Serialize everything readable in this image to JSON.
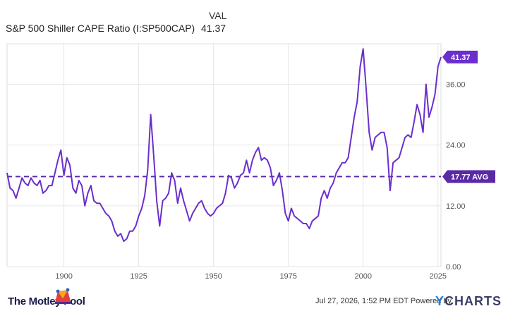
{
  "legend": {
    "header": "VAL",
    "series_name": "S&P 500 Shiller CAPE Ratio (I:SP500CAP)",
    "series_value": "41.37"
  },
  "colors": {
    "series": "#6a2fcc",
    "avg_line": "#5a2aa6",
    "grid": "#e6e6e6",
    "axis_text": "#555555"
  },
  "chart_data": {
    "type": "line",
    "title": "",
    "xlabel": "",
    "ylabel": "",
    "xlim": [
      1881,
      2026
    ],
    "ylim": [
      0,
      44
    ],
    "x_ticks": [
      1900,
      1925,
      1950,
      1975,
      2000,
      2025
    ],
    "x_tick_labels": [
      "1900",
      "1925",
      "1950",
      "1975",
      "2000",
      "2025"
    ],
    "y_ticks": [
      0,
      12,
      24,
      36
    ],
    "y_tick_labels": [
      "0.00",
      "12.00",
      "24.00",
      "36.00"
    ],
    "grid": true,
    "series": [
      {
        "name": "S&P 500 Shiller CAPE Ratio (I:SP500CAP)",
        "x": [
          1881,
          1882,
          1883,
          1884,
          1885,
          1886,
          1887,
          1888,
          1889,
          1890,
          1891,
          1892,
          1893,
          1894,
          1895,
          1896,
          1897,
          1898,
          1899,
          1900,
          1901,
          1902,
          1903,
          1904,
          1905,
          1906,
          1907,
          1908,
          1909,
          1910,
          1911,
          1912,
          1913,
          1914,
          1915,
          1916,
          1917,
          1918,
          1919,
          1920,
          1921,
          1922,
          1923,
          1924,
          1925,
          1926,
          1927,
          1928,
          1929,
          1930,
          1931,
          1932,
          1933,
          1934,
          1935,
          1936,
          1937,
          1938,
          1939,
          1940,
          1941,
          1942,
          1943,
          1944,
          1945,
          1946,
          1947,
          1948,
          1949,
          1950,
          1951,
          1952,
          1953,
          1954,
          1955,
          1956,
          1957,
          1958,
          1959,
          1960,
          1961,
          1962,
          1963,
          1964,
          1965,
          1966,
          1967,
          1968,
          1969,
          1970,
          1971,
          1972,
          1973,
          1974,
          1975,
          1976,
          1977,
          1978,
          1979,
          1980,
          1981,
          1982,
          1983,
          1984,
          1985,
          1986,
          1987,
          1988,
          1989,
          1990,
          1991,
          1992,
          1993,
          1994,
          1995,
          1996,
          1997,
          1998,
          1999,
          2000,
          2001,
          2002,
          2003,
          2004,
          2005,
          2006,
          2007,
          2008,
          2009,
          2010,
          2011,
          2012,
          2013,
          2014,
          2015,
          2016,
          2017,
          2018,
          2019,
          2020,
          2021,
          2022,
          2023,
          2024,
          2025,
          2026
        ],
        "values": [
          18.5,
          15.5,
          15.0,
          13.5,
          15.5,
          17.5,
          16.5,
          16.0,
          17.5,
          16.5,
          16.0,
          17.0,
          14.5,
          15.0,
          16.0,
          16.0,
          18.5,
          21.0,
          23.0,
          18.0,
          21.5,
          20.0,
          15.5,
          14.5,
          17.0,
          16.0,
          12.0,
          14.5,
          16.0,
          13.0,
          12.5,
          12.5,
          11.5,
          10.5,
          10.0,
          9.0,
          7.0,
          6.0,
          6.5,
          5.0,
          5.5,
          7.0,
          7.0,
          8.0,
          10.0,
          11.5,
          14.0,
          19.0,
          30.0,
          22.0,
          13.0,
          8.0,
          13.0,
          13.5,
          14.5,
          18.5,
          17.0,
          12.5,
          15.5,
          13.0,
          11.0,
          9.0,
          10.5,
          11.5,
          12.5,
          13.0,
          11.5,
          10.5,
          10.0,
          10.5,
          11.5,
          12.0,
          12.5,
          14.5,
          18.0,
          17.5,
          15.5,
          16.5,
          18.0,
          18.5,
          21.0,
          18.5,
          21.0,
          22.5,
          23.5,
          21.0,
          21.5,
          21.0,
          19.5,
          16.0,
          17.0,
          18.5,
          15.0,
          10.5,
          9.0,
          11.5,
          10.0,
          9.5,
          9.0,
          8.5,
          8.5,
          7.5,
          9.0,
          9.5,
          10.0,
          13.5,
          15.0,
          13.5,
          15.5,
          16.5,
          18.5,
          19.5,
          20.5,
          20.5,
          21.5,
          25.5,
          29.5,
          32.5,
          39.5,
          43.0,
          35.0,
          26.5,
          23.0,
          25.5,
          26.0,
          26.5,
          26.5,
          23.5,
          15.0,
          20.5,
          21.0,
          21.5,
          23.5,
          25.5,
          26.0,
          25.5,
          28.5,
          32.0,
          30.0,
          26.5,
          36.0,
          29.5,
          31.5,
          34.0,
          39.5,
          41.37
        ]
      }
    ],
    "average": {
      "value": 17.77,
      "label": "17.77 AVG"
    },
    "last_value": {
      "value": 41.37,
      "label": "41.37"
    }
  },
  "footer": {
    "brand": "The Motley Fool",
    "timestamp": "Jul 27, 2026, 1:52 PM EDT Powered by",
    "provider_prefix": "Y",
    "provider_rest": "CHARTS"
  }
}
